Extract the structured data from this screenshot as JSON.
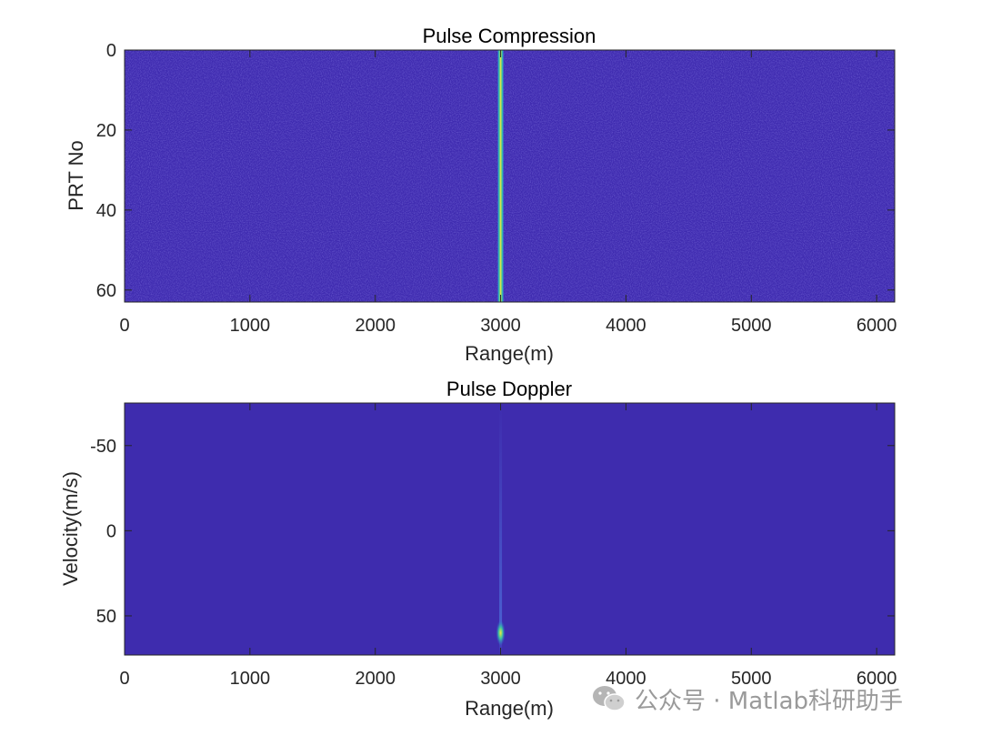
{
  "chart_data": [
    {
      "type": "heatmap",
      "title": "Pulse Compression",
      "xlabel": "Range(m)",
      "ylabel": "PRT No",
      "xlim": [
        0,
        6144
      ],
      "ylim": [
        0,
        63
      ],
      "y_reversed": true,
      "xticks": [
        0,
        1000,
        2000,
        3000,
        4000,
        5000,
        6000
      ],
      "yticks": [
        0,
        20,
        40,
        60
      ],
      "target": {
        "range": 3000,
        "prt_from": 0,
        "prt_to": 63
      },
      "colormap": "parula",
      "background_color": "#3f2bb0",
      "target_color": "#f4e83c",
      "grid": false
    },
    {
      "type": "heatmap",
      "title": "Pulse Doppler",
      "xlabel": "Range(m)",
      "ylabel": "Velocity(m/s)",
      "xlim": [
        0,
        6144
      ],
      "ylim": [
        -75,
        73
      ],
      "y_reversed": true,
      "xticks": [
        0,
        1000,
        2000,
        3000,
        4000,
        5000,
        6000
      ],
      "yticks": [
        -50,
        0,
        50
      ],
      "target": {
        "range": 3000,
        "velocity": 60
      },
      "colormap": "parula",
      "background_color": "#3e2cae",
      "target_color": "#f4e83c",
      "grid": false
    }
  ],
  "watermark": {
    "text": "公众号 · Matlab科研助手",
    "icon": "wechat-icon"
  }
}
